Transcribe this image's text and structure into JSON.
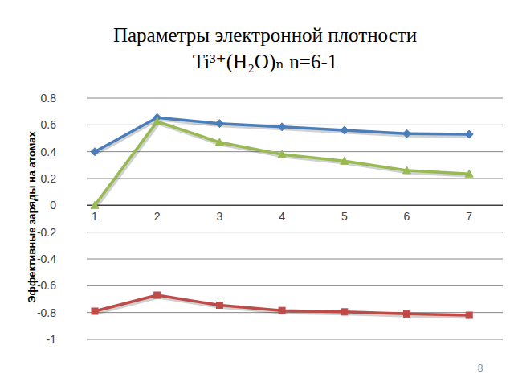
{
  "chart_data": {
    "type": "line",
    "title": "Параметры электронной плотности\nTi³⁺(H₂O)ₙ n=6-1",
    "y_label": "Эффективные заряды на атомах",
    "annotations": [
      "8"
    ],
    "categories": [
      "1",
      "2",
      "3",
      "4",
      "5",
      "6",
      "7"
    ],
    "series": [
      {
        "color": "#4a7ebb",
        "marker": "diamond",
        "values": [
          0.4,
          0.655,
          0.61,
          0.585,
          0.56,
          0.535,
          0.53
        ]
      },
      {
        "color": "#be4b48",
        "marker": "square",
        "values": [
          -0.79,
          -0.67,
          -0.745,
          -0.785,
          -0.795,
          -0.81,
          -0.82
        ]
      },
      {
        "color": "#98b954",
        "marker": "triangle",
        "values": [
          0.0,
          0.625,
          0.47,
          0.38,
          0.33,
          0.26,
          0.235
        ]
      }
    ],
    "ylim": [
      -1,
      0.8
    ],
    "yticks": [
      -1,
      -0.8,
      -0.6,
      -0.4,
      -0.2,
      0,
      0.2,
      0.4,
      0.6,
      0.8
    ],
    "grid": true
  }
}
